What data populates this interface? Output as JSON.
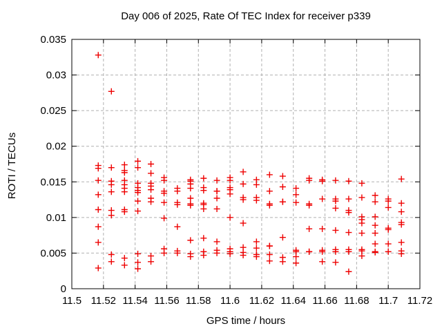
{
  "chart_data": {
    "type": "scatter",
    "title": "Day 006 of 2025, Rate Of TEC Index for receiver p339",
    "xlabel": "GPS time / hours",
    "ylabel": "ROTI / TECUs",
    "xlim": [
      11.5,
      11.72
    ],
    "ylim": [
      0,
      0.035
    ],
    "grid": true,
    "legend_position": "none",
    "marker": "plus",
    "marker_color": "#ee0000",
    "grid_color": "#b0b0b0",
    "axis_color": "#000000",
    "xticks": [
      {
        "v": 11.5,
        "label": "11.5"
      },
      {
        "v": 11.52,
        "label": "11.52"
      },
      {
        "v": 11.54,
        "label": "11.54"
      },
      {
        "v": 11.56,
        "label": "11.56"
      },
      {
        "v": 11.58,
        "label": "11.58"
      },
      {
        "v": 11.6,
        "label": "11.6"
      },
      {
        "v": 11.62,
        "label": "11.62"
      },
      {
        "v": 11.64,
        "label": "11.64"
      },
      {
        "v": 11.66,
        "label": "11.66"
      },
      {
        "v": 11.68,
        "label": "11.68"
      },
      {
        "v": 11.7,
        "label": "11.7"
      },
      {
        "v": 11.72,
        "label": "11.72"
      }
    ],
    "yticks": [
      {
        "v": 0,
        "label": "0"
      },
      {
        "v": 0.005,
        "label": "0.005"
      },
      {
        "v": 0.01,
        "label": "0.01"
      },
      {
        "v": 0.015,
        "label": "0.015"
      },
      {
        "v": 0.02,
        "label": "0.02"
      },
      {
        "v": 0.025,
        "label": "0.025"
      },
      {
        "v": 0.03,
        "label": "0.03"
      },
      {
        "v": 0.035,
        "label": "0.035"
      }
    ],
    "points": [
      [
        11.5167,
        0.0328
      ],
      [
        11.5167,
        0.0173
      ],
      [
        11.5167,
        0.0169
      ],
      [
        11.5167,
        0.0152
      ],
      [
        11.5167,
        0.0132
      ],
      [
        11.5167,
        0.0111
      ],
      [
        11.5167,
        0.0087
      ],
      [
        11.5167,
        0.0065
      ],
      [
        11.5167,
        0.0029
      ],
      [
        11.525,
        0.0277
      ],
      [
        11.525,
        0.017
      ],
      [
        11.525,
        0.0151
      ],
      [
        11.525,
        0.0146
      ],
      [
        11.525,
        0.0136
      ],
      [
        11.525,
        0.011
      ],
      [
        11.525,
        0.0103
      ],
      [
        11.525,
        0.0048
      ],
      [
        11.525,
        0.0038
      ],
      [
        11.5333,
        0.0174
      ],
      [
        11.5333,
        0.0166
      ],
      [
        11.5333,
        0.0163
      ],
      [
        11.5333,
        0.0152
      ],
      [
        11.5333,
        0.0146
      ],
      [
        11.5333,
        0.0141
      ],
      [
        11.5333,
        0.0136
      ],
      [
        11.5333,
        0.0111
      ],
      [
        11.5333,
        0.0108
      ],
      [
        11.5333,
        0.0043
      ],
      [
        11.5333,
        0.0033
      ],
      [
        11.5417,
        0.0179
      ],
      [
        11.5417,
        0.017
      ],
      [
        11.5417,
        0.0148
      ],
      [
        11.5417,
        0.0142
      ],
      [
        11.5417,
        0.0138
      ],
      [
        11.5417,
        0.0135
      ],
      [
        11.5417,
        0.0123
      ],
      [
        11.5417,
        0.0109
      ],
      [
        11.5417,
        0.0049
      ],
      [
        11.5417,
        0.0037
      ],
      [
        11.5417,
        0.0028
      ],
      [
        11.55,
        0.0175
      ],
      [
        11.55,
        0.0162
      ],
      [
        11.55,
        0.0148
      ],
      [
        11.55,
        0.0144
      ],
      [
        11.55,
        0.0139
      ],
      [
        11.55,
        0.0127
      ],
      [
        11.55,
        0.0122
      ],
      [
        11.55,
        0.0046
      ],
      [
        11.55,
        0.0038
      ],
      [
        11.5583,
        0.0156
      ],
      [
        11.5583,
        0.0152
      ],
      [
        11.5583,
        0.0137
      ],
      [
        11.5583,
        0.0134
      ],
      [
        11.5583,
        0.0121
      ],
      [
        11.5583,
        0.0099
      ],
      [
        11.5583,
        0.0056
      ],
      [
        11.5583,
        0.005
      ],
      [
        11.5667,
        0.0141
      ],
      [
        11.5667,
        0.0137
      ],
      [
        11.5667,
        0.0121
      ],
      [
        11.5667,
        0.0118
      ],
      [
        11.5667,
        0.0087
      ],
      [
        11.5667,
        0.0053
      ],
      [
        11.5667,
        0.005
      ],
      [
        11.575,
        0.0153
      ],
      [
        11.575,
        0.0151
      ],
      [
        11.575,
        0.0147
      ],
      [
        11.575,
        0.0141
      ],
      [
        11.575,
        0.0127
      ],
      [
        11.575,
        0.0119
      ],
      [
        11.575,
        0.0117
      ],
      [
        11.575,
        0.0068
      ],
      [
        11.575,
        0.0049
      ],
      [
        11.575,
        0.0045
      ],
      [
        11.5833,
        0.0155
      ],
      [
        11.5833,
        0.0142
      ],
      [
        11.5833,
        0.0138
      ],
      [
        11.5833,
        0.012
      ],
      [
        11.5833,
        0.0118
      ],
      [
        11.5833,
        0.0112
      ],
      [
        11.5833,
        0.0071
      ],
      [
        11.5833,
        0.0052
      ],
      [
        11.5833,
        0.0047
      ],
      [
        11.5917,
        0.0152
      ],
      [
        11.5917,
        0.0137
      ],
      [
        11.5917,
        0.0137
      ],
      [
        11.5917,
        0.0127
      ],
      [
        11.5917,
        0.0112
      ],
      [
        11.5917,
        0.0066
      ],
      [
        11.5917,
        0.0054
      ],
      [
        11.5917,
        0.005
      ],
      [
        11.6,
        0.0156
      ],
      [
        11.6,
        0.0152
      ],
      [
        11.6,
        0.0142
      ],
      [
        11.6,
        0.0139
      ],
      [
        11.6,
        0.0133
      ],
      [
        11.6,
        0.01
      ],
      [
        11.6,
        0.0056
      ],
      [
        11.6,
        0.0052
      ],
      [
        11.6,
        0.0049
      ],
      [
        11.6083,
        0.0164
      ],
      [
        11.6083,
        0.0147
      ],
      [
        11.6083,
        0.0128
      ],
      [
        11.6083,
        0.0125
      ],
      [
        11.6083,
        0.0092
      ],
      [
        11.6083,
        0.0058
      ],
      [
        11.6083,
        0.0051
      ],
      [
        11.6083,
        0.0047
      ],
      [
        11.6167,
        0.0153
      ],
      [
        11.6167,
        0.0146
      ],
      [
        11.6167,
        0.0128
      ],
      [
        11.6167,
        0.0124
      ],
      [
        11.6167,
        0.0066
      ],
      [
        11.6167,
        0.0057
      ],
      [
        11.6167,
        0.0048
      ],
      [
        11.6167,
        0.0045
      ],
      [
        11.625,
        0.016
      ],
      [
        11.625,
        0.0137
      ],
      [
        11.625,
        0.0119
      ],
      [
        11.625,
        0.0117
      ],
      [
        11.625,
        0.006
      ],
      [
        11.625,
        0.006
      ],
      [
        11.625,
        0.0048
      ],
      [
        11.625,
        0.0039
      ],
      [
        11.6333,
        0.0158
      ],
      [
        11.6333,
        0.0143
      ],
      [
        11.6333,
        0.0122
      ],
      [
        11.6333,
        0.0122
      ],
      [
        11.6333,
        0.0072
      ],
      [
        11.6333,
        0.0044
      ],
      [
        11.6333,
        0.0038
      ],
      [
        11.6417,
        0.0141
      ],
      [
        11.6417,
        0.0132
      ],
      [
        11.6417,
        0.0121
      ],
      [
        11.6417,
        0.0054
      ],
      [
        11.6417,
        0.0052
      ],
      [
        11.6417,
        0.0045
      ],
      [
        11.6417,
        0.0036
      ],
      [
        11.65,
        0.0155
      ],
      [
        11.65,
        0.0152
      ],
      [
        11.65,
        0.0119
      ],
      [
        11.65,
        0.0117
      ],
      [
        11.65,
        0.0084
      ],
      [
        11.65,
        0.0052
      ],
      [
        11.65,
        0.0052
      ],
      [
        11.6583,
        0.0153
      ],
      [
        11.6583,
        0.0151
      ],
      [
        11.6583,
        0.0126
      ],
      [
        11.6583,
        0.0084
      ],
      [
        11.6583,
        0.0054
      ],
      [
        11.6583,
        0.0052
      ],
      [
        11.6583,
        0.0038
      ],
      [
        11.6667,
        0.0152
      ],
      [
        11.6667,
        0.0126
      ],
      [
        11.6667,
        0.0123
      ],
      [
        11.6667,
        0.0113
      ],
      [
        11.6667,
        0.0082
      ],
      [
        11.6667,
        0.0055
      ],
      [
        11.6667,
        0.0052
      ],
      [
        11.6667,
        0.0037
      ],
      [
        11.675,
        0.0151
      ],
      [
        11.675,
        0.0126
      ],
      [
        11.675,
        0.011
      ],
      [
        11.675,
        0.0107
      ],
      [
        11.675,
        0.0079
      ],
      [
        11.675,
        0.0055
      ],
      [
        11.675,
        0.0052
      ],
      [
        11.675,
        0.0024
      ],
      [
        11.6833,
        0.0148
      ],
      [
        11.6833,
        0.0128
      ],
      [
        11.6833,
        0.0101
      ],
      [
        11.6833,
        0.0097
      ],
      [
        11.6833,
        0.0092
      ],
      [
        11.6833,
        0.0078
      ],
      [
        11.6833,
        0.0055
      ],
      [
        11.6833,
        0.0053
      ],
      [
        11.6833,
        0.0046
      ],
      [
        11.6917,
        0.0131
      ],
      [
        11.6917,
        0.0122
      ],
      [
        11.6917,
        0.0101
      ],
      [
        11.6917,
        0.0089
      ],
      [
        11.6917,
        0.0078
      ],
      [
        11.6917,
        0.0063
      ],
      [
        11.6917,
        0.0052
      ],
      [
        11.6917,
        0.0051
      ],
      [
        11.7,
        0.0126
      ],
      [
        11.7,
        0.0123
      ],
      [
        11.7,
        0.0114
      ],
      [
        11.7,
        0.0085
      ],
      [
        11.7,
        0.0083
      ],
      [
        11.7,
        0.0063
      ],
      [
        11.7,
        0.0052
      ],
      [
        11.7083,
        0.0154
      ],
      [
        11.7083,
        0.012
      ],
      [
        11.7083,
        0.0108
      ],
      [
        11.7083,
        0.0093
      ],
      [
        11.7083,
        0.009
      ],
      [
        11.7083,
        0.0065
      ],
      [
        11.7083,
        0.0053
      ],
      [
        11.7083,
        0.0049
      ]
    ]
  }
}
